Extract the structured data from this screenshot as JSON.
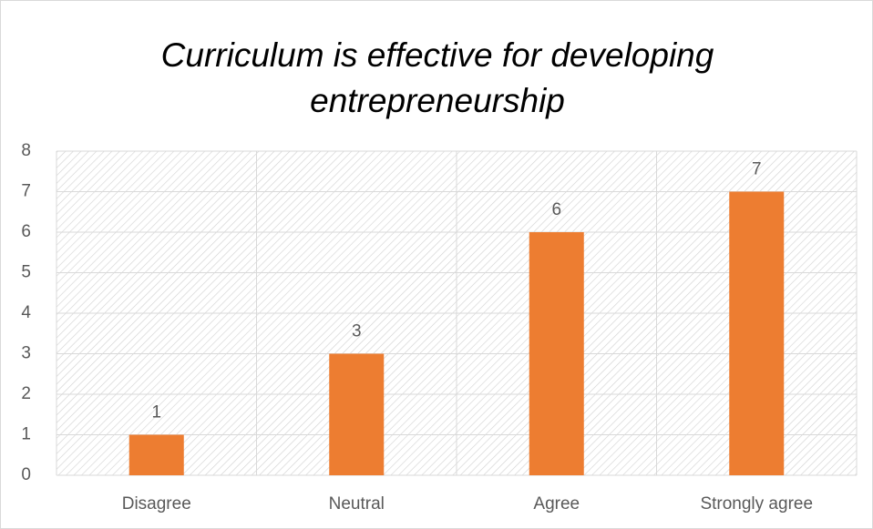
{
  "chart_data": {
    "type": "bar",
    "title": "Curriculum is effective for developing entrepreneurship",
    "categories": [
      "Disagree",
      "Neutral",
      "Agree",
      "Strongly agree"
    ],
    "values": [
      1,
      3,
      6,
      7
    ],
    "color": "#ed7d31",
    "ylim": [
      0,
      8
    ],
    "yticks": [
      0,
      1,
      2,
      3,
      4,
      5,
      6,
      7,
      8
    ],
    "grid": true
  }
}
